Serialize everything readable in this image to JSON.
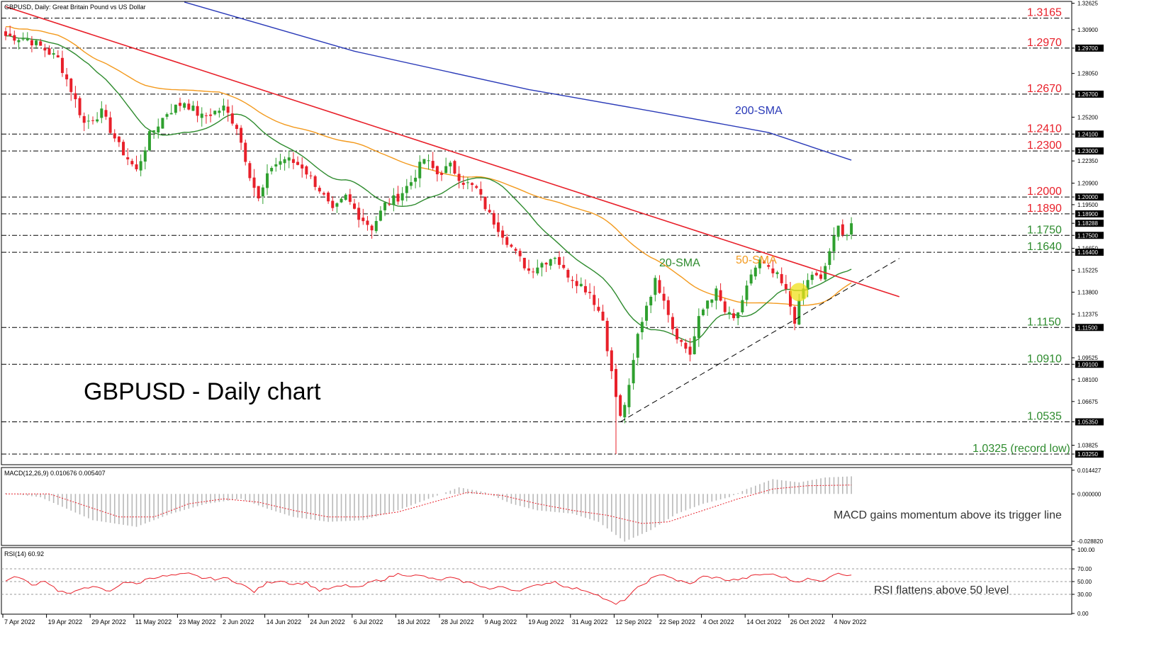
{
  "header": {
    "main_title": "GBPUSD, Daily:  Great Britain Pound vs US Dollar",
    "macd_title": "MACD(12,26,9) 0.010676 0.005407",
    "rsi_title": "RSI(14) 60.92"
  },
  "annotations": {
    "big_title": "GBPUSD - Daily chart",
    "sma200_label": "200-SMA",
    "sma50_label": "50-SMA",
    "sma20_label": "20-SMA",
    "macd_note": "MACD gains momentum above its trigger line",
    "rsi_note": "RSI flattens above 50 level"
  },
  "colors": {
    "bull": "#2fa02f",
    "bear": "#e8202a",
    "sma20": "#2e8b2e",
    "sma50": "#f39a1e",
    "sma200": "#2a3ab8",
    "trendline": "#e8202a",
    "level_text_red": "#e8202a",
    "level_text_green": "#2e8b2e",
    "highlight": "#f0e01a"
  },
  "chart_data": [
    {
      "type": "candlestick",
      "title": "GBPUSD, Daily:  Great Britain Pound vs US Dollar",
      "ylim": [
        1.0265,
        1.3265
      ],
      "y_tick_labels": [
        "1.32625",
        "1.30900",
        "1.29700",
        "1.28050",
        "1.26700",
        "1.25200",
        "1.24100",
        "1.23000",
        "1.22350",
        "1.20900",
        "1.20000",
        "1.19500",
        "1.18900",
        "1.18288",
        "1.17500",
        "1.16650",
        "1.16400",
        "1.15225",
        "1.13800",
        "1.12375",
        "1.11500",
        "1.09525",
        "1.09100",
        "1.08100",
        "1.06675",
        "1.05350",
        "1.03825",
        "1.03250"
      ],
      "x_tick_labels": [
        "7 Apr 2022",
        "19 Apr 2022",
        "29 Apr 2022",
        "11 May 2022",
        "23 May 2022",
        "2 Jun 2022",
        "14 Jun 2022",
        "24 Jun 2022",
        "6 Jul 2022",
        "18 Jul 2022",
        "28 Jul 2022",
        "9 Aug 2022",
        "19 Aug 2022",
        "31 Aug 2022",
        "12 Sep 2022",
        "22 Sep 2022",
        "4 Oct 2022",
        "14 Oct 2022",
        "26 Oct 2022",
        "4 Nov 2022"
      ],
      "horizontal_levels": [
        {
          "label": "1.3165",
          "value": 1.3165,
          "color": "red"
        },
        {
          "label": "1.2970",
          "value": 1.297,
          "color": "red"
        },
        {
          "label": "1.2670",
          "value": 1.267,
          "color": "red"
        },
        {
          "label": "1.2410",
          "value": 1.241,
          "color": "red"
        },
        {
          "label": "1.2300",
          "value": 1.23,
          "color": "red"
        },
        {
          "label": "1.2000",
          "value": 1.2,
          "color": "red"
        },
        {
          "label": "1.1890",
          "value": 1.189,
          "color": "red"
        },
        {
          "label": "1.1750",
          "value": 1.175,
          "color": "green"
        },
        {
          "label": "1.1640",
          "value": 1.164,
          "color": "green"
        },
        {
          "label": "1.1150",
          "value": 1.115,
          "color": "green"
        },
        {
          "label": "1.0910",
          "value": 1.091,
          "color": "green"
        },
        {
          "label": "1.0535",
          "value": 1.0535,
          "color": "green"
        },
        {
          "label": "1.0325 (record low)",
          "value": 1.0325,
          "color": "green"
        }
      ],
      "current_price": 1.18288,
      "ohlc_anchor_closes": [
        [
          0,
          1.305
        ],
        [
          5,
          1.303
        ],
        [
          8,
          1.298
        ],
        [
          12,
          1.29
        ],
        [
          15,
          1.27
        ],
        [
          18,
          1.248
        ],
        [
          22,
          1.255
        ],
        [
          26,
          1.233
        ],
        [
          30,
          1.217
        ],
        [
          33,
          1.24
        ],
        [
          37,
          1.255
        ],
        [
          41,
          1.262
        ],
        [
          45,
          1.252
        ],
        [
          50,
          1.258
        ],
        [
          53,
          1.246
        ],
        [
          56,
          1.215
        ],
        [
          58,
          1.198
        ],
        [
          61,
          1.22
        ],
        [
          64,
          1.225
        ],
        [
          68,
          1.22
        ],
        [
          72,
          1.205
        ],
        [
          75,
          1.19
        ],
        [
          78,
          1.2
        ],
        [
          81,
          1.188
        ],
        [
          84,
          1.18
        ],
        [
          87,
          1.195
        ],
        [
          90,
          1.2
        ],
        [
          93,
          1.21
        ],
        [
          96,
          1.225
        ],
        [
          99,
          1.215
        ],
        [
          102,
          1.22
        ],
        [
          105,
          1.21
        ],
        [
          108,
          1.205
        ],
        [
          111,
          1.188
        ],
        [
          114,
          1.176
        ],
        [
          117,
          1.163
        ],
        [
          120,
          1.152
        ],
        [
          123,
          1.157
        ],
        [
          126,
          1.162
        ],
        [
          128,
          1.152
        ],
        [
          131,
          1.145
        ],
        [
          134,
          1.138
        ],
        [
          137,
          1.12
        ],
        [
          139,
          1.085
        ],
        [
          140,
          1.07
        ],
        [
          141,
          1.056
        ],
        [
          143,
          1.075
        ],
        [
          145,
          1.11
        ],
        [
          147,
          1.13
        ],
        [
          149,
          1.145
        ],
        [
          151,
          1.135
        ],
        [
          153,
          1.115
        ],
        [
          155,
          1.105
        ],
        [
          157,
          1.098
        ],
        [
          159,
          1.12
        ],
        [
          161,
          1.133
        ],
        [
          163,
          1.138
        ],
        [
          165,
          1.125
        ],
        [
          167,
          1.12
        ],
        [
          169,
          1.13
        ],
        [
          171,
          1.15
        ],
        [
          173,
          1.158
        ],
        [
          175,
          1.152
        ],
        [
          177,
          1.148
        ],
        [
          179,
          1.138
        ],
        [
          181,
          1.12
        ],
        [
          183,
          1.14
        ],
        [
          185,
          1.15
        ],
        [
          187,
          1.145
        ],
        [
          189,
          1.165
        ],
        [
          191,
          1.18
        ],
        [
          193,
          1.176
        ],
        [
          194,
          1.1829
        ]
      ],
      "sma200": [
        [
          41,
          1.327
        ],
        [
          80,
          1.295
        ],
        [
          120,
          1.27
        ],
        [
          150,
          1.255
        ],
        [
          175,
          1.242
        ],
        [
          194,
          1.224
        ]
      ],
      "trendline": [
        [
          0,
          1.324
        ],
        [
          205,
          1.135
        ]
      ],
      "support_line": [
        [
          141,
          1.0535
        ],
        [
          205,
          1.16
        ]
      ]
    },
    {
      "type": "bar+line",
      "title": "MACD(12,26,9) 0.010676 0.005407",
      "y_tick_labels": [
        "0.014427",
        "0.000000",
        "-0.028820"
      ],
      "ylim": [
        -0.0305,
        0.0152
      ],
      "histogram_anchors": [
        [
          0,
          0.0005
        ],
        [
          8,
          -0.002
        ],
        [
          14,
          -0.009
        ],
        [
          20,
          -0.016
        ],
        [
          30,
          -0.02
        ],
        [
          38,
          -0.012
        ],
        [
          46,
          -0.006
        ],
        [
          54,
          -0.003
        ],
        [
          60,
          -0.009
        ],
        [
          66,
          -0.014
        ],
        [
          74,
          -0.017
        ],
        [
          82,
          -0.016
        ],
        [
          90,
          -0.01
        ],
        [
          98,
          -0.002
        ],
        [
          104,
          0.004
        ],
        [
          110,
          0.001
        ],
        [
          116,
          -0.006
        ],
        [
          122,
          -0.01
        ],
        [
          130,
          -0.012
        ],
        [
          136,
          -0.017
        ],
        [
          142,
          -0.029
        ],
        [
          148,
          -0.022
        ],
        [
          154,
          -0.012
        ],
        [
          160,
          -0.006
        ],
        [
          166,
          -0.002
        ],
        [
          170,
          0.003
        ],
        [
          176,
          0.009
        ],
        [
          182,
          0.007
        ],
        [
          188,
          0.01
        ],
        [
          194,
          0.0107
        ]
      ],
      "signal_anchors": [
        [
          0,
          0.0
        ],
        [
          10,
          0.0
        ],
        [
          18,
          -0.007
        ],
        [
          26,
          -0.014
        ],
        [
          34,
          -0.014
        ],
        [
          42,
          -0.006
        ],
        [
          50,
          -0.003
        ],
        [
          58,
          -0.005
        ],
        [
          66,
          -0.01
        ],
        [
          74,
          -0.014
        ],
        [
          82,
          -0.014
        ],
        [
          90,
          -0.011
        ],
        [
          98,
          -0.005
        ],
        [
          106,
          0.001
        ],
        [
          114,
          -0.001
        ],
        [
          122,
          -0.006
        ],
        [
          130,
          -0.01
        ],
        [
          138,
          -0.013
        ],
        [
          146,
          -0.018
        ],
        [
          152,
          -0.017
        ],
        [
          160,
          -0.01
        ],
        [
          168,
          -0.003
        ],
        [
          176,
          0.003
        ],
        [
          184,
          0.005
        ],
        [
          194,
          0.0054
        ]
      ]
    },
    {
      "type": "line",
      "title": "RSI(14) 60.92",
      "ylim": [
        0,
        100
      ],
      "y_tick_labels": [
        "100.00",
        "70.00",
        "50.00",
        "30.00",
        "0.00"
      ],
      "rsi_anchors": [
        [
          0,
          52
        ],
        [
          3,
          58
        ],
        [
          6,
          44
        ],
        [
          9,
          52
        ],
        [
          12,
          36
        ],
        [
          15,
          30
        ],
        [
          18,
          42
        ],
        [
          21,
          40
        ],
        [
          24,
          34
        ],
        [
          27,
          50
        ],
        [
          30,
          46
        ],
        [
          33,
          56
        ],
        [
          36,
          58
        ],
        [
          39,
          60
        ],
        [
          42,
          62
        ],
        [
          45,
          56
        ],
        [
          48,
          54
        ],
        [
          51,
          55
        ],
        [
          54,
          46
        ],
        [
          57,
          34
        ],
        [
          60,
          48
        ],
        [
          63,
          52
        ],
        [
          66,
          46
        ],
        [
          69,
          48
        ],
        [
          72,
          36
        ],
        [
          75,
          40
        ],
        [
          78,
          44
        ],
        [
          81,
          40
        ],
        [
          84,
          50
        ],
        [
          87,
          54
        ],
        [
          90,
          62
        ],
        [
          93,
          60
        ],
        [
          96,
          58
        ],
        [
          99,
          52
        ],
        [
          102,
          56
        ],
        [
          105,
          50
        ],
        [
          108,
          46
        ],
        [
          111,
          38
        ],
        [
          114,
          42
        ],
        [
          117,
          36
        ],
        [
          120,
          40
        ],
        [
          123,
          46
        ],
        [
          126,
          50
        ],
        [
          129,
          40
        ],
        [
          132,
          38
        ],
        [
          135,
          32
        ],
        [
          138,
          20
        ],
        [
          140,
          14
        ],
        [
          142,
          22
        ],
        [
          145,
          40
        ],
        [
          148,
          54
        ],
        [
          151,
          62
        ],
        [
          154,
          52
        ],
        [
          157,
          46
        ],
        [
          160,
          58
        ],
        [
          163,
          56
        ],
        [
          166,
          52
        ],
        [
          169,
          54
        ],
        [
          172,
          60
        ],
        [
          175,
          62
        ],
        [
          178,
          58
        ],
        [
          181,
          50
        ],
        [
          184,
          54
        ],
        [
          187,
          50
        ],
        [
          190,
          62
        ],
        [
          194,
          61
        ]
      ]
    }
  ]
}
